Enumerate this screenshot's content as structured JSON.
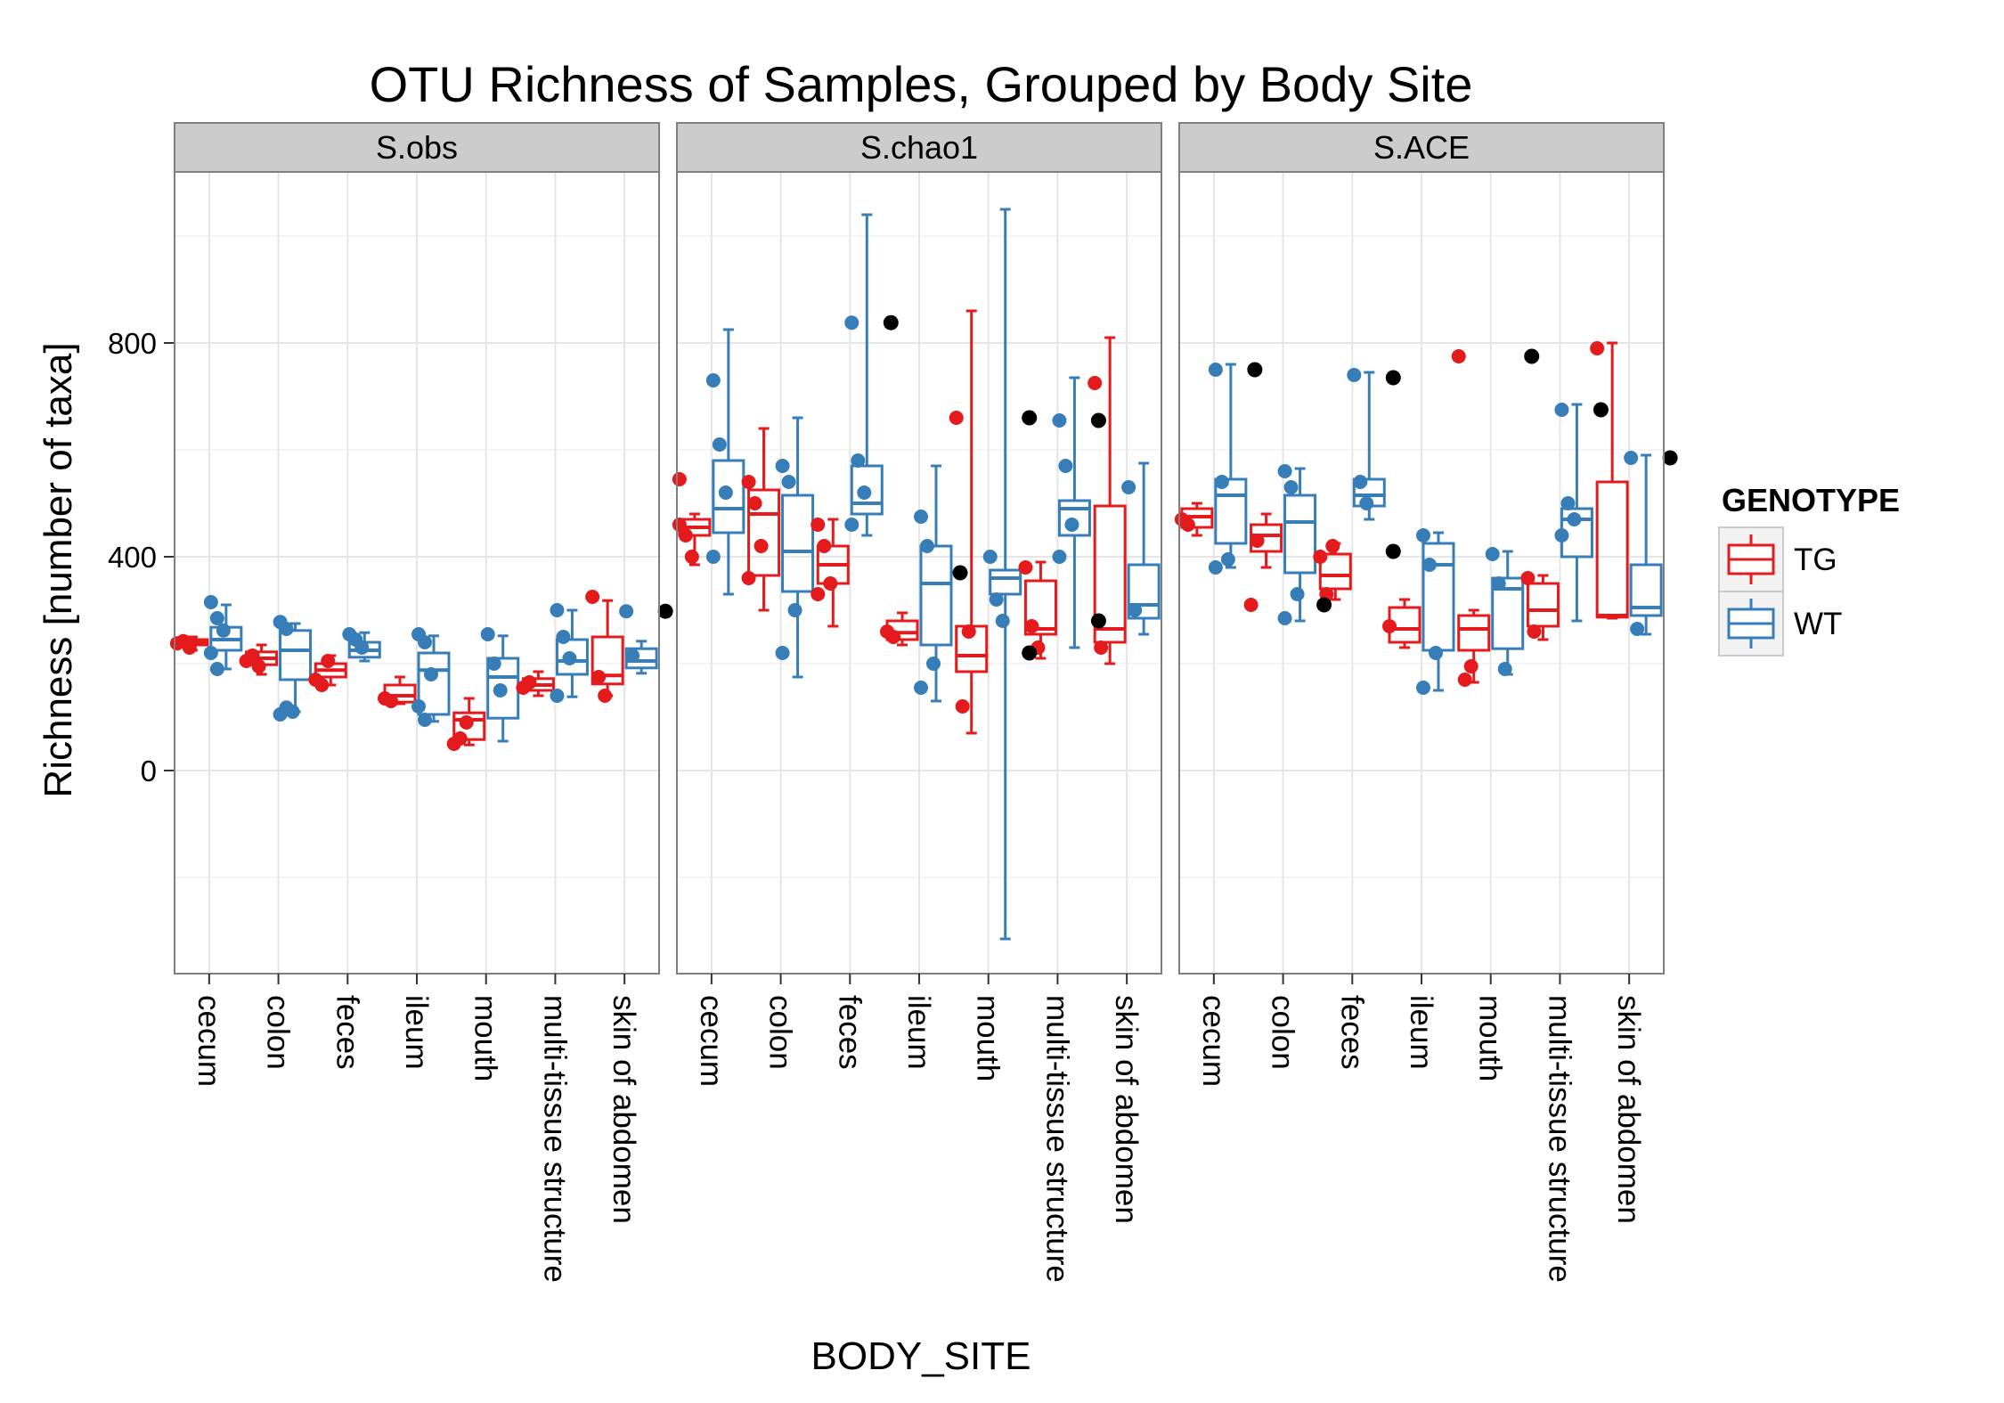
{
  "chart_data": {
    "type": "box",
    "title": "OTU Richness of Samples, Grouped by Body Site",
    "xlabel": "BODY_SITE",
    "ylabel": "Richness [number of taxa]",
    "ylim": [
      -380,
      1120
    ],
    "yticks": [
      0,
      400,
      800
    ],
    "ytick_labels": [
      "0",
      "400",
      "800"
    ],
    "grid": true,
    "legend": {
      "title": "GENOTYPE",
      "position": "right",
      "entries": [
        {
          "key": "TG",
          "label": "TG",
          "color": "#E41A1C"
        },
        {
          "key": "WT",
          "label": "WT",
          "color": "#377EB8"
        }
      ]
    },
    "categories": [
      "cecum",
      "colon",
      "feces",
      "ileum",
      "mouth",
      "multi-tissue structure",
      "skin of abdomen"
    ],
    "panels": [
      {
        "name": "S.obs",
        "boxes": [
          {
            "cat": "cecum",
            "series": "TG",
            "min": 225,
            "q1": 235,
            "median": 240,
            "q3": 245,
            "max": 250,
            "points": [
              238,
              242,
              230
            ]
          },
          {
            "cat": "cecum",
            "series": "WT",
            "min": 190,
            "q1": 225,
            "median": 245,
            "q3": 268,
            "max": 310,
            "points": [
              315,
              285,
              262,
              220,
              190
            ]
          },
          {
            "cat": "colon",
            "series": "TG",
            "min": 180,
            "q1": 198,
            "median": 210,
            "q3": 222,
            "max": 235,
            "points": [
              205,
              215,
              195
            ]
          },
          {
            "cat": "colon",
            "series": "WT",
            "min": 110,
            "q1": 170,
            "median": 225,
            "q3": 262,
            "max": 275,
            "points": [
              278,
              265,
              110,
              105,
              118
            ]
          },
          {
            "cat": "feces",
            "series": "TG",
            "min": 160,
            "q1": 175,
            "median": 188,
            "q3": 200,
            "max": 215,
            "points": [
              170,
              160,
              205
            ]
          },
          {
            "cat": "feces",
            "series": "WT",
            "min": 205,
            "q1": 212,
            "median": 225,
            "q3": 240,
            "max": 258,
            "points": [
              255,
              245,
              230
            ]
          },
          {
            "cat": "ileum",
            "series": "TG",
            "min": 125,
            "q1": 128,
            "median": 140,
            "q3": 160,
            "max": 175,
            "points": [
              135,
              130
            ]
          },
          {
            "cat": "ileum",
            "series": "WT",
            "min": 92,
            "q1": 105,
            "median": 188,
            "q3": 220,
            "max": 252,
            "points": [
              255,
              240,
              180,
              120,
              95
            ]
          },
          {
            "cat": "mouth",
            "series": "TG",
            "min": 48,
            "q1": 58,
            "median": 95,
            "q3": 108,
            "max": 135,
            "points": [
              50,
              60,
              90
            ]
          },
          {
            "cat": "mouth",
            "series": "WT",
            "min": 55,
            "q1": 98,
            "median": 175,
            "q3": 210,
            "max": 252,
            "points": [
              255,
              200,
              150
            ]
          },
          {
            "cat": "multi-tissue structure",
            "series": "TG",
            "min": 140,
            "q1": 150,
            "median": 160,
            "q3": 172,
            "max": 185,
            "points": [
              155,
              165
            ]
          },
          {
            "cat": "multi-tissue structure",
            "series": "WT",
            "min": 138,
            "q1": 180,
            "median": 205,
            "q3": 245,
            "max": 300,
            "points": [
              300,
              250,
              210,
              140
            ]
          },
          {
            "cat": "skin of abdomen",
            "series": "TG",
            "min": 140,
            "q1": 162,
            "median": 178,
            "q3": 250,
            "max": 318,
            "points": [
              325,
              175,
              140
            ]
          },
          {
            "cat": "skin of abdomen",
            "series": "WT",
            "min": 182,
            "q1": 192,
            "median": 205,
            "q3": 228,
            "max": 242,
            "points": [
              298,
              215
            ]
          }
        ],
        "outliers": [
          {
            "cat": "skin of abdomen",
            "value": 298
          }
        ]
      },
      {
        "name": "S.chao1",
        "boxes": [
          {
            "cat": "cecum",
            "series": "TG",
            "min": 385,
            "q1": 440,
            "median": 455,
            "q3": 470,
            "max": 480,
            "points": [
              460,
              440,
              400,
              545
            ]
          },
          {
            "cat": "cecum",
            "series": "WT",
            "min": 330,
            "q1": 445,
            "median": 490,
            "q3": 580,
            "max": 825,
            "points": [
              730,
              610,
              520,
              400
            ]
          },
          {
            "cat": "colon",
            "series": "TG",
            "min": 300,
            "q1": 365,
            "median": 480,
            "q3": 525,
            "max": 640,
            "points": [
              540,
              500,
              420,
              360
            ]
          },
          {
            "cat": "colon",
            "series": "WT",
            "min": 175,
            "q1": 335,
            "median": 410,
            "q3": 515,
            "max": 660,
            "points": [
              570,
              540,
              300,
              220
            ]
          },
          {
            "cat": "feces",
            "series": "TG",
            "min": 270,
            "q1": 350,
            "median": 385,
            "q3": 420,
            "max": 470,
            "points": [
              460,
              420,
              350,
              330
            ]
          },
          {
            "cat": "feces",
            "series": "WT",
            "min": 440,
            "q1": 480,
            "median": 500,
            "q3": 570,
            "max": 1040,
            "points": [
              838,
              580,
              520,
              460
            ]
          },
          {
            "cat": "ileum",
            "series": "TG",
            "min": 235,
            "q1": 245,
            "median": 258,
            "q3": 280,
            "max": 295,
            "points": [
              260,
              250
            ]
          },
          {
            "cat": "ileum",
            "series": "WT",
            "min": 130,
            "q1": 235,
            "median": 350,
            "q3": 420,
            "max": 570,
            "points": [
              475,
              420,
              200,
              155
            ]
          },
          {
            "cat": "mouth",
            "series": "TG",
            "min": 70,
            "q1": 185,
            "median": 215,
            "q3": 270,
            "max": 860,
            "points": [
              660,
              120,
              260
            ]
          },
          {
            "cat": "mouth",
            "series": "WT",
            "min": -315,
            "q1": 330,
            "median": 360,
            "q3": 375,
            "max": 1050,
            "points": [
              400,
              320,
              280
            ]
          },
          {
            "cat": "multi-tissue structure",
            "series": "TG",
            "min": 210,
            "q1": 255,
            "median": 265,
            "q3": 355,
            "max": 390,
            "points": [
              380,
              270,
              230
            ]
          },
          {
            "cat": "multi-tissue structure",
            "series": "WT",
            "min": 230,
            "q1": 440,
            "median": 490,
            "q3": 505,
            "max": 735,
            "points": [
              655,
              570,
              460,
              400
            ]
          },
          {
            "cat": "skin of abdomen",
            "series": "TG",
            "min": 200,
            "q1": 240,
            "median": 265,
            "q3": 495,
            "max": 810,
            "points": [
              725,
              230
            ]
          },
          {
            "cat": "skin of abdomen",
            "series": "WT",
            "min": 255,
            "q1": 285,
            "median": 310,
            "q3": 385,
            "max": 575,
            "points": [
              530,
              300
            ]
          }
        ],
        "outliers": [
          {
            "cat": "feces",
            "value": 838
          },
          {
            "cat": "ileum",
            "value": 370
          },
          {
            "cat": "mouth",
            "value": 660
          },
          {
            "cat": "mouth",
            "value": 220
          },
          {
            "cat": "multi-tissue structure",
            "value": 655
          },
          {
            "cat": "multi-tissue structure",
            "value": 280
          }
        ]
      },
      {
        "name": "S.ACE",
        "boxes": [
          {
            "cat": "cecum",
            "series": "TG",
            "min": 440,
            "q1": 455,
            "median": 475,
            "q3": 490,
            "max": 500,
            "points": [
              470,
              460
            ]
          },
          {
            "cat": "cecum",
            "series": "WT",
            "min": 380,
            "q1": 425,
            "median": 515,
            "q3": 545,
            "max": 760,
            "points": [
              750,
              540,
              395,
              380
            ]
          },
          {
            "cat": "colon",
            "series": "TG",
            "min": 380,
            "q1": 410,
            "median": 440,
            "q3": 460,
            "max": 480,
            "points": [
              310,
              430
            ]
          },
          {
            "cat": "colon",
            "series": "WT",
            "min": 280,
            "q1": 370,
            "median": 465,
            "q3": 515,
            "max": 565,
            "points": [
              560,
              530,
              330,
              285
            ]
          },
          {
            "cat": "feces",
            "series": "TG",
            "min": 320,
            "q1": 340,
            "median": 365,
            "q3": 405,
            "max": 425,
            "points": [
              400,
              330,
              420
            ]
          },
          {
            "cat": "feces",
            "series": "WT",
            "min": 470,
            "q1": 495,
            "median": 515,
            "q3": 545,
            "max": 745,
            "points": [
              740,
              540,
              500
            ]
          },
          {
            "cat": "ileum",
            "series": "TG",
            "min": 230,
            "q1": 240,
            "median": 265,
            "q3": 305,
            "max": 320,
            "points": [
              270
            ]
          },
          {
            "cat": "ileum",
            "series": "WT",
            "min": 150,
            "q1": 225,
            "median": 385,
            "q3": 425,
            "max": 445,
            "points": [
              440,
              385,
              220,
              155
            ]
          },
          {
            "cat": "mouth",
            "series": "TG",
            "min": 165,
            "q1": 225,
            "median": 265,
            "q3": 290,
            "max": 300,
            "points": [
              775,
              170,
              195
            ]
          },
          {
            "cat": "mouth",
            "series": "WT",
            "min": 180,
            "q1": 228,
            "median": 340,
            "q3": 360,
            "max": 410,
            "points": [
              405,
              350,
              190
            ]
          },
          {
            "cat": "multi-tissue structure",
            "series": "TG",
            "min": 245,
            "q1": 270,
            "median": 300,
            "q3": 350,
            "max": 365,
            "points": [
              360,
              260
            ]
          },
          {
            "cat": "multi-tissue structure",
            "series": "WT",
            "min": 280,
            "q1": 400,
            "median": 470,
            "q3": 490,
            "max": 685,
            "points": [
              675,
              500,
              470,
              440
            ]
          },
          {
            "cat": "skin of abdomen",
            "series": "TG",
            "min": 285,
            "q1": 287,
            "median": 290,
            "q3": 540,
            "max": 800,
            "points": [
              790
            ]
          },
          {
            "cat": "skin of abdomen",
            "series": "WT",
            "min": 255,
            "q1": 290,
            "median": 305,
            "q3": 385,
            "max": 590,
            "points": [
              585,
              265
            ]
          }
        ],
        "outliers": [
          {
            "cat": "cecum",
            "value": 750
          },
          {
            "cat": "colon",
            "value": 310
          },
          {
            "cat": "feces",
            "value": 735
          },
          {
            "cat": "feces",
            "value": 410
          },
          {
            "cat": "mouth",
            "value": 775
          },
          {
            "cat": "multi-tissue structure",
            "value": 675
          },
          {
            "cat": "skin of abdomen",
            "value": 585
          }
        ]
      }
    ]
  }
}
